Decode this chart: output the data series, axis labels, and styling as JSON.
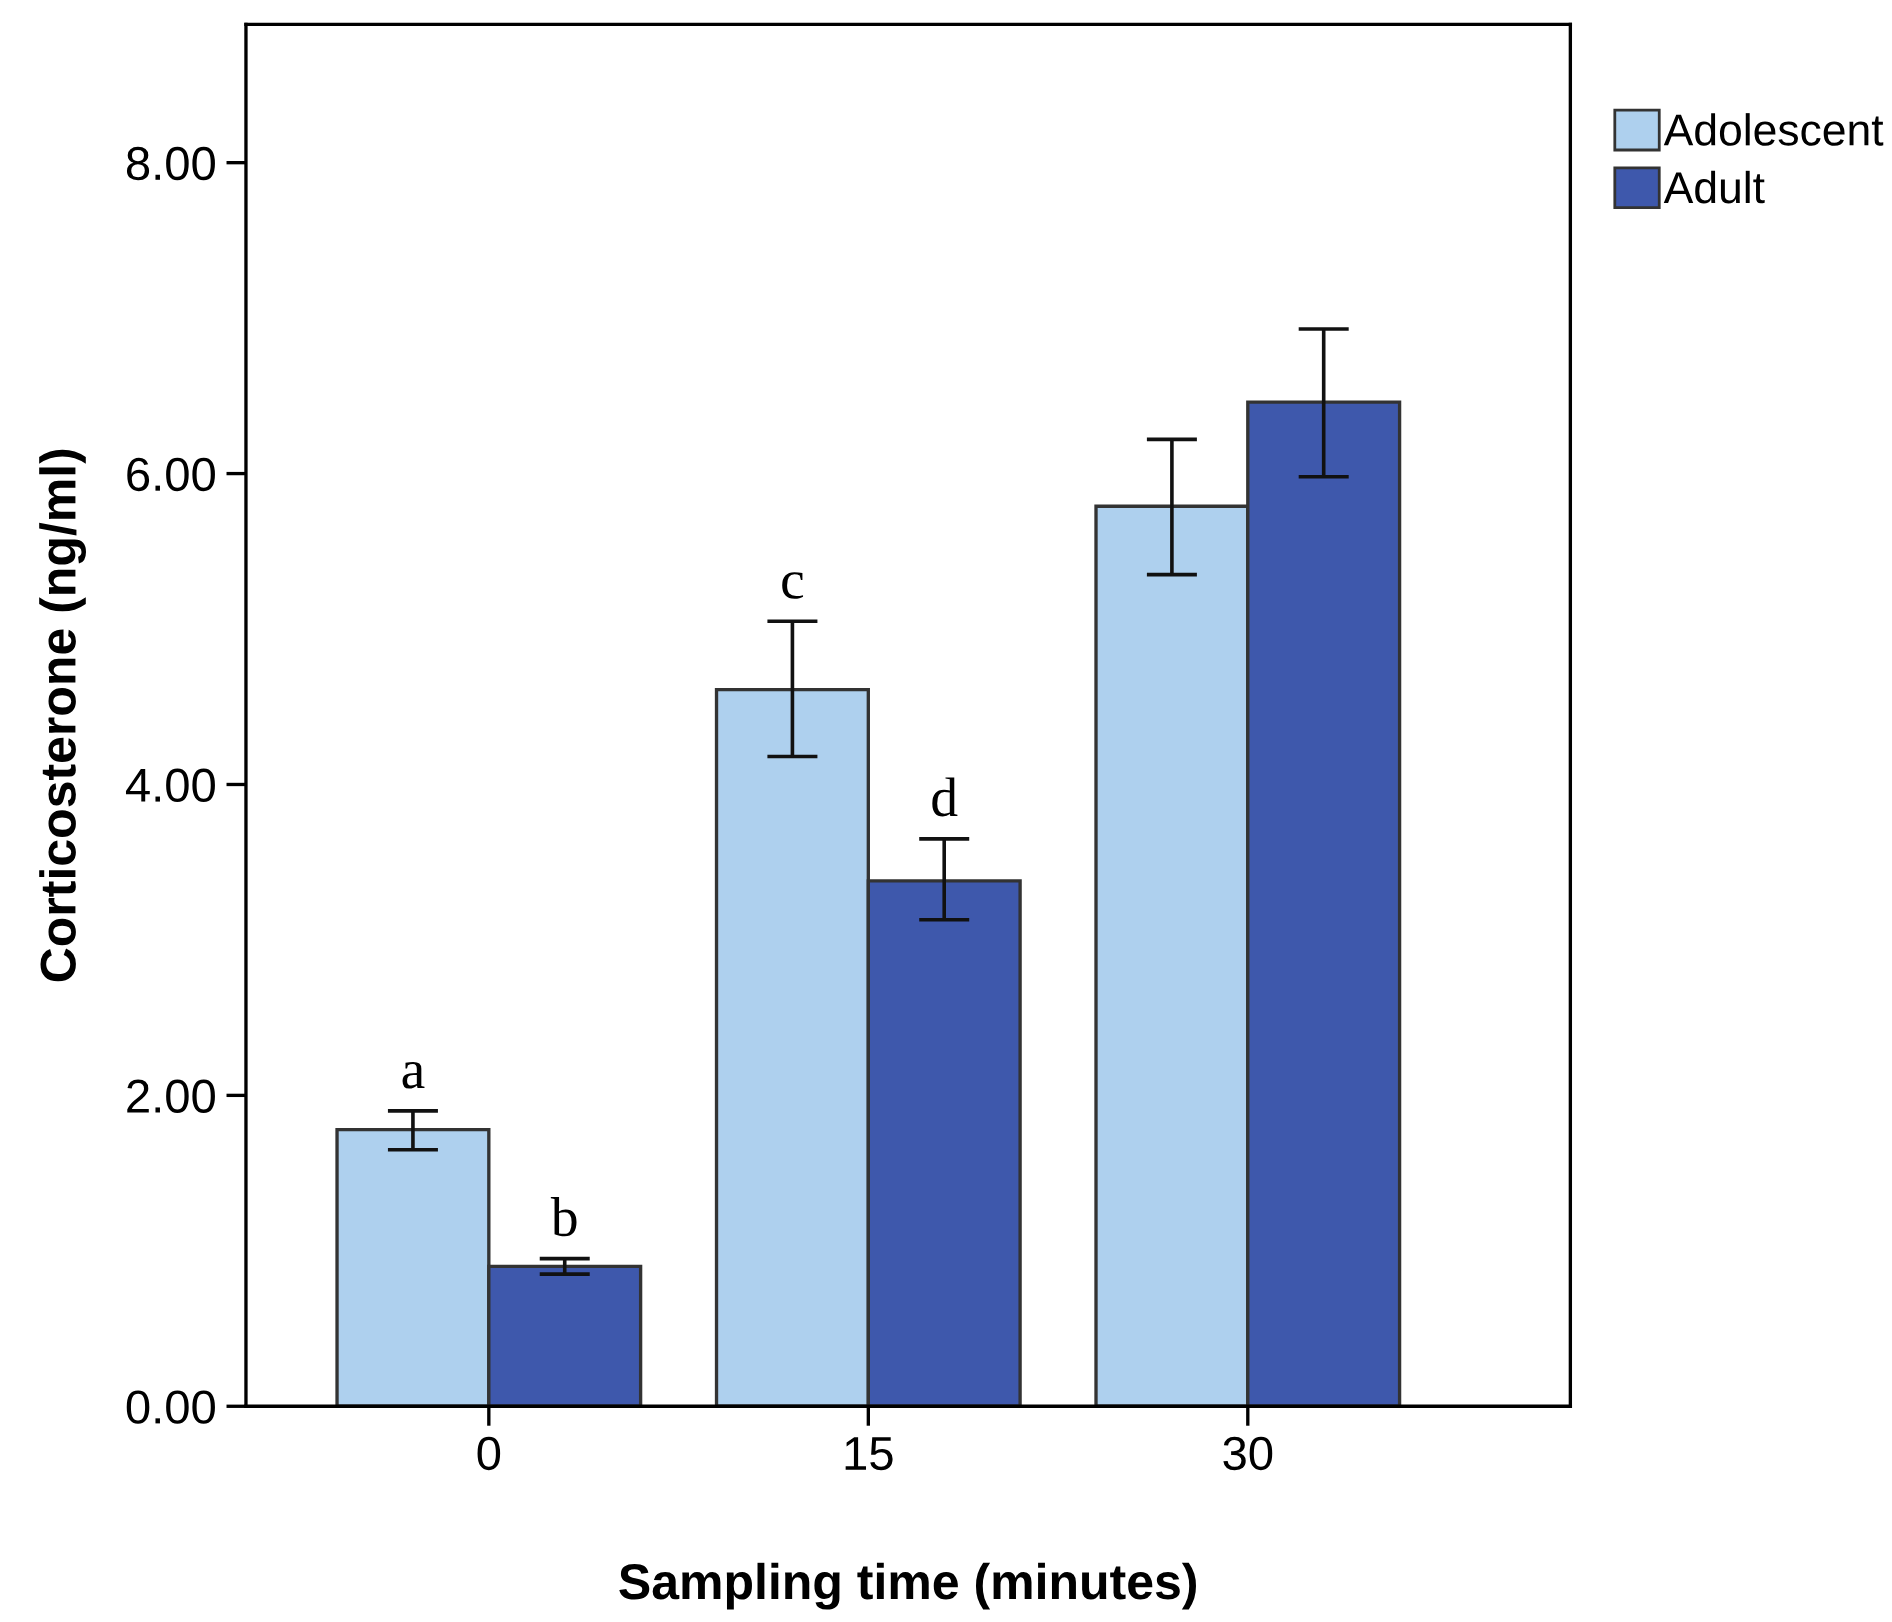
{
  "chart_data": {
    "type": "bar",
    "xlabel": "Sampling time (minutes)",
    "ylabel": "Corticosterone (ng/ml)",
    "categories": [
      "0",
      "15",
      "30"
    ],
    "series": [
      {
        "name": "Adolescent",
        "color": "#aed0ee",
        "values": [
          1.78,
          4.61,
          5.79
        ],
        "errors": [
          [
            1.65,
            1.9
          ],
          [
            4.18,
            5.05
          ],
          [
            5.35,
            6.22
          ]
        ]
      },
      {
        "name": "Adult",
        "color": "#3e58ac",
        "values": [
          0.9,
          3.38,
          6.46
        ],
        "errors": [
          [
            0.85,
            0.95
          ],
          [
            3.13,
            3.65
          ],
          [
            5.98,
            6.93
          ]
        ]
      }
    ],
    "ylim": [
      0,
      8.89
    ],
    "yticks": [
      {
        "value": 0,
        "label": "0.00"
      },
      {
        "value": 2,
        "label": "2.00"
      },
      {
        "value": 4,
        "label": "4.00"
      },
      {
        "value": 6,
        "label": "6.00"
      },
      {
        "value": 8,
        "label": "8.00"
      }
    ],
    "annotations": [
      "a",
      "b",
      "c",
      "d"
    ],
    "legend": "top right",
    "grid": false
  }
}
